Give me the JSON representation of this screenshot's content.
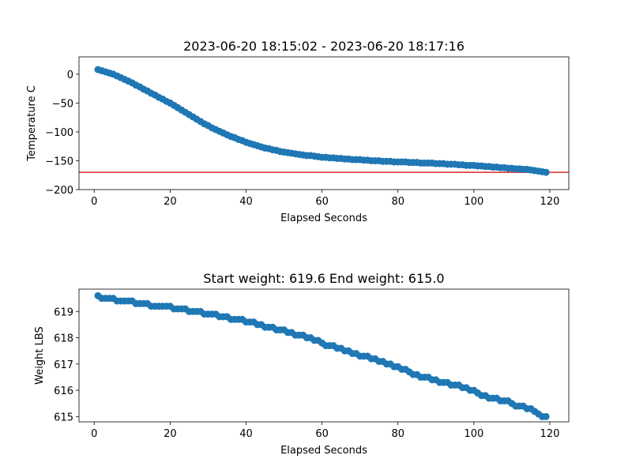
{
  "chart_data": [
    {
      "type": "scatter",
      "title": "2023-06-20 18:15:02 - 2023-06-20 18:17:16",
      "xlabel": "Elapsed Seconds",
      "ylabel": "Temperature C",
      "xlim": [
        -4,
        125
      ],
      "ylim": [
        -200,
        30
      ],
      "xticks": [
        0,
        20,
        40,
        60,
        80,
        100,
        120
      ],
      "yticks": [
        0,
        -50,
        -100,
        -150,
        -200
      ],
      "marker_color": "#1f77b4",
      "reference_line": {
        "y": -170,
        "color": "#d62728"
      },
      "series": [
        {
          "x": [
            1,
            2,
            3,
            4,
            5,
            6,
            7,
            8,
            9,
            10,
            11,
            12,
            13,
            14,
            15,
            16,
            17,
            18,
            19,
            20,
            21,
            22,
            23,
            24,
            25,
            26,
            27,
            28,
            29,
            30,
            31,
            32,
            33,
            34,
            35,
            36,
            37,
            38,
            39,
            40,
            41,
            42,
            43,
            44,
            45,
            46,
            47,
            48,
            49,
            50,
            51,
            52,
            53,
            54,
            55,
            56,
            57,
            58,
            59,
            60,
            61,
            62,
            63,
            64,
            65,
            66,
            67,
            68,
            69,
            70,
            71,
            72,
            73,
            74,
            75,
            76,
            77,
            78,
            79,
            80,
            81,
            82,
            83,
            84,
            85,
            86,
            87,
            88,
            89,
            90,
            91,
            92,
            93,
            94,
            95,
            96,
            97,
            98,
            99,
            100,
            101,
            102,
            103,
            104,
            105,
            106,
            107,
            108,
            109,
            110,
            111,
            112,
            113,
            114,
            115,
            116,
            117,
            118,
            119
          ],
          "y": [
            8,
            6,
            4,
            2,
            0,
            -3,
            -6,
            -9,
            -12,
            -15,
            -19,
            -22,
            -26,
            -29,
            -33,
            -36,
            -40,
            -43,
            -47,
            -50,
            -54,
            -58,
            -62,
            -66,
            -70,
            -74,
            -78,
            -82,
            -86,
            -89,
            -93,
            -96,
            -99,
            -102,
            -105,
            -108,
            -110,
            -113,
            -115,
            -118,
            -120,
            -122,
            -124,
            -126,
            -128,
            -129,
            -131,
            -132,
            -134,
            -135,
            -136,
            -137,
            -138,
            -139,
            -140,
            -141,
            -141,
            -142,
            -143,
            -144,
            -144,
            -145,
            -145,
            -146,
            -146,
            -147,
            -147,
            -148,
            -148,
            -148,
            -149,
            -149,
            -150,
            -150,
            -150,
            -151,
            -151,
            -151,
            -152,
            -152,
            -152,
            -152,
            -153,
            -153,
            -153,
            -154,
            -154,
            -154,
            -154,
            -155,
            -155,
            -155,
            -156,
            -156,
            -156,
            -157,
            -157,
            -158,
            -158,
            -158,
            -159,
            -159,
            -160,
            -160,
            -161,
            -161,
            -162,
            -162,
            -163,
            -163,
            -164,
            -164,
            -165,
            -165,
            -166,
            -167,
            -168,
            -169,
            -170
          ]
        }
      ]
    },
    {
      "type": "scatter",
      "title": "Start weight: 619.6 End weight: 615.0",
      "xlabel": "Elapsed Seconds",
      "ylabel": "Weight LBS",
      "xlim": [
        -4,
        125
      ],
      "ylim": [
        614.8,
        619.85
      ],
      "xticks": [
        0,
        20,
        40,
        60,
        80,
        100,
        120
      ],
      "yticks": [
        615,
        616,
        617,
        618,
        619
      ],
      "marker_color": "#1f77b4",
      "series": [
        {
          "x": [
            1,
            2,
            3,
            4,
            5,
            6,
            7,
            8,
            9,
            10,
            11,
            12,
            13,
            14,
            15,
            16,
            17,
            18,
            19,
            20,
            21,
            22,
            23,
            24,
            25,
            26,
            27,
            28,
            29,
            30,
            31,
            32,
            33,
            34,
            35,
            36,
            37,
            38,
            39,
            40,
            41,
            42,
            43,
            44,
            45,
            46,
            47,
            48,
            49,
            50,
            51,
            52,
            53,
            54,
            55,
            56,
            57,
            58,
            59,
            60,
            61,
            62,
            63,
            64,
            65,
            66,
            67,
            68,
            69,
            70,
            71,
            72,
            73,
            74,
            75,
            76,
            77,
            78,
            79,
            80,
            81,
            82,
            83,
            84,
            85,
            86,
            87,
            88,
            89,
            90,
            91,
            92,
            93,
            94,
            95,
            96,
            97,
            98,
            99,
            100,
            101,
            102,
            103,
            104,
            105,
            106,
            107,
            108,
            109,
            110,
            111,
            112,
            113,
            114,
            115,
            116,
            117,
            118,
            119
          ],
          "y": [
            619.6,
            619.5,
            619.5,
            619.5,
            619.5,
            619.4,
            619.4,
            619.4,
            619.4,
            619.4,
            619.3,
            619.3,
            619.3,
            619.3,
            619.2,
            619.2,
            619.2,
            619.2,
            619.2,
            619.2,
            619.1,
            619.1,
            619.1,
            619.1,
            619.0,
            619.0,
            619.0,
            619.0,
            618.9,
            618.9,
            618.9,
            618.9,
            618.8,
            618.8,
            618.8,
            618.7,
            618.7,
            618.7,
            618.7,
            618.6,
            618.6,
            618.6,
            618.5,
            618.5,
            618.4,
            618.4,
            618.4,
            618.3,
            618.3,
            618.3,
            618.2,
            618.2,
            618.1,
            618.1,
            618.1,
            618.0,
            618.0,
            617.9,
            617.9,
            617.8,
            617.7,
            617.7,
            617.7,
            617.6,
            617.6,
            617.5,
            617.5,
            617.4,
            617.4,
            617.3,
            617.3,
            617.3,
            617.2,
            617.2,
            617.1,
            617.1,
            617.0,
            617.0,
            616.9,
            616.9,
            616.8,
            616.8,
            616.7,
            616.6,
            616.6,
            616.5,
            616.5,
            616.5,
            616.4,
            616.4,
            616.3,
            616.3,
            616.3,
            616.2,
            616.2,
            616.2,
            616.1,
            616.1,
            616.0,
            616.0,
            615.9,
            615.8,
            615.8,
            615.7,
            615.7,
            615.7,
            615.6,
            615.6,
            615.6,
            615.5,
            615.4,
            615.4,
            615.4,
            615.3,
            615.3,
            615.2,
            615.1,
            615.0,
            615.0
          ]
        }
      ]
    }
  ]
}
